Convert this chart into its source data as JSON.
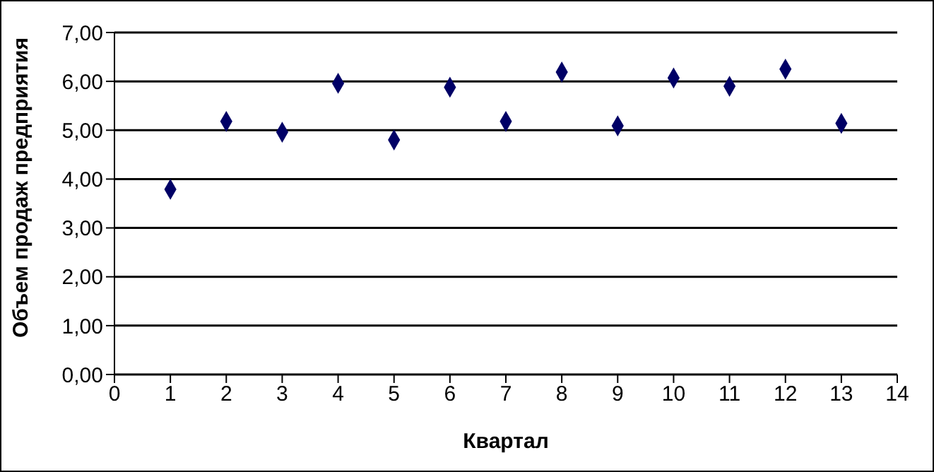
{
  "chart_data": {
    "type": "scatter",
    "xlabel": "Квартал",
    "ylabel": "Объем продаж предприятия",
    "x": [
      1,
      2,
      3,
      4,
      5,
      6,
      7,
      8,
      9,
      10,
      11,
      12,
      13
    ],
    "values": [
      3.79,
      5.18,
      4.96,
      5.96,
      4.8,
      5.88,
      5.18,
      6.19,
      5.09,
      6.07,
      5.9,
      6.25,
      5.14
    ],
    "color": "#000066",
    "marker": "diamond",
    "xlim": [
      0,
      14
    ],
    "xticks": [
      0,
      1,
      2,
      3,
      4,
      5,
      6,
      7,
      8,
      9,
      10,
      11,
      12,
      13,
      14
    ],
    "ylim": [
      0,
      7
    ],
    "yticks": [
      {
        "value": 0,
        "label": "0,00"
      },
      {
        "value": 1,
        "label": "1,00"
      },
      {
        "value": 2,
        "label": "2,00"
      },
      {
        "value": 3,
        "label": "3,00"
      },
      {
        "value": 4,
        "label": "4,00"
      },
      {
        "value": 5,
        "label": "5,00"
      },
      {
        "value": 6,
        "label": "6,00"
      },
      {
        "value": 7,
        "label": "7,00"
      }
    ],
    "grid": "y"
  }
}
